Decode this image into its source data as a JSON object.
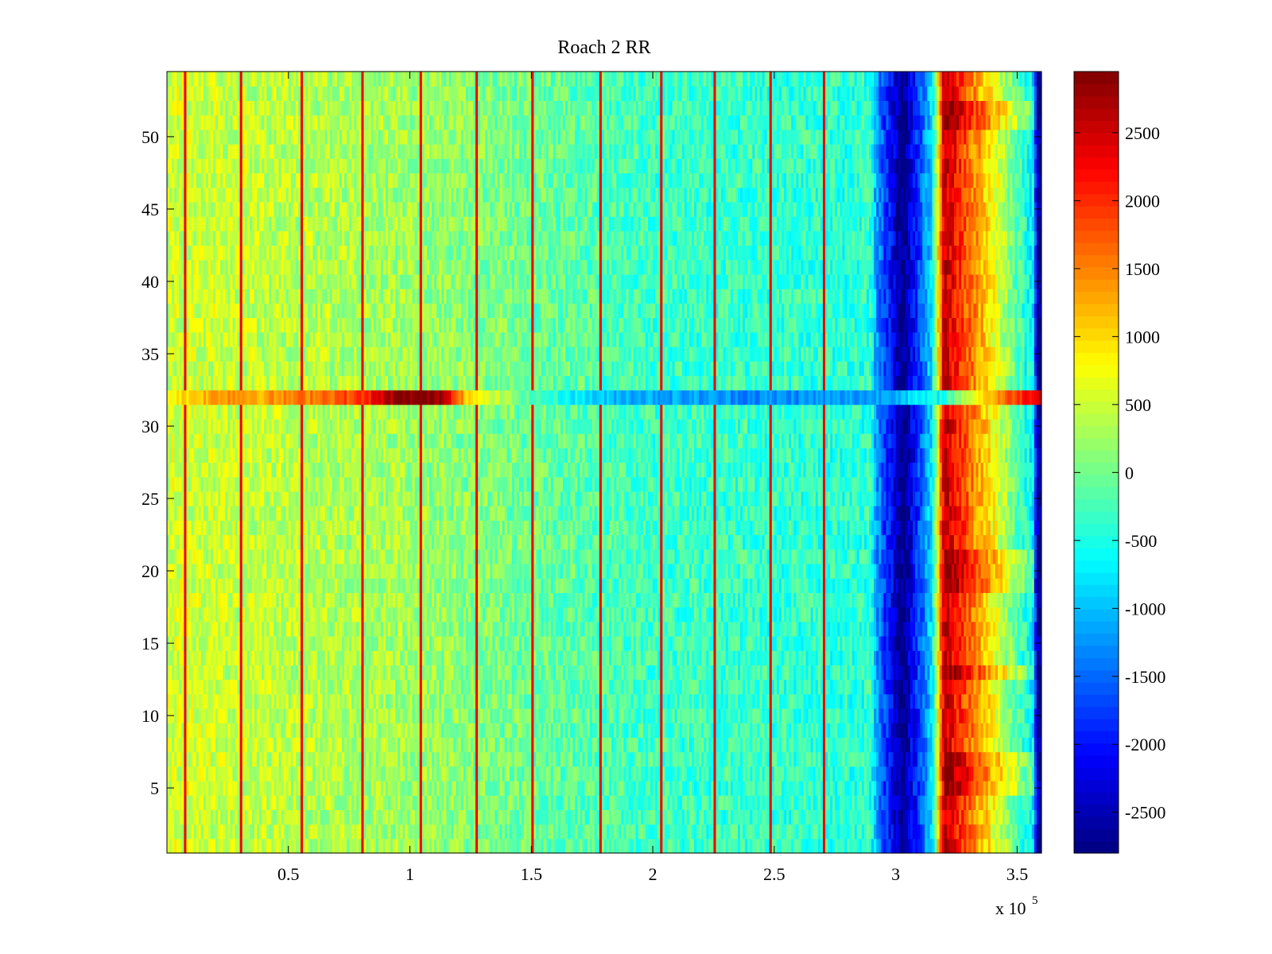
{
  "chart_data": {
    "type": "heatmap",
    "title": "Roach 2 RR",
    "xlabel": "",
    "ylabel": "",
    "x_exponent_label": {
      "base": "x 10",
      "exponent": "5"
    },
    "xlim": [
      0,
      360000
    ],
    "ylim": [
      0.5,
      54.5
    ],
    "rows": 54,
    "columns": 360,
    "x_ticks": [
      {
        "value": 50000,
        "label": "0.5"
      },
      {
        "value": 100000,
        "label": "1"
      },
      {
        "value": 150000,
        "label": "1.5"
      },
      {
        "value": 200000,
        "label": "2"
      },
      {
        "value": 250000,
        "label": "2.5"
      },
      {
        "value": 300000,
        "label": "3"
      },
      {
        "value": 350000,
        "label": "3.5"
      }
    ],
    "y_ticks": [
      {
        "value": 5,
        "label": "5"
      },
      {
        "value": 10,
        "label": "10"
      },
      {
        "value": 15,
        "label": "15"
      },
      {
        "value": 20,
        "label": "20"
      },
      {
        "value": 25,
        "label": "25"
      },
      {
        "value": 30,
        "label": "30"
      },
      {
        "value": 35,
        "label": "35"
      },
      {
        "value": 40,
        "label": "40"
      },
      {
        "value": 45,
        "label": "45"
      },
      {
        "value": 50,
        "label": "50"
      }
    ],
    "colorbar": {
      "colormap": "jet",
      "clim": [
        -2800,
        2950
      ],
      "ticks": [
        {
          "value": 2500,
          "label": "2500"
        },
        {
          "value": 2000,
          "label": "2000"
        },
        {
          "value": 1500,
          "label": "1500"
        },
        {
          "value": 1000,
          "label": "1000"
        },
        {
          "value": 500,
          "label": "500"
        },
        {
          "value": 0,
          "label": "0"
        },
        {
          "value": -500,
          "label": "-500"
        },
        {
          "value": -1000,
          "label": "-1000"
        },
        {
          "value": -1500,
          "label": "-1500"
        },
        {
          "value": -2000,
          "label": "-2000"
        },
        {
          "value": -2500,
          "label": "-2500"
        }
      ]
    },
    "baseline_trend": [
      {
        "x": 0,
        "value": 550
      },
      {
        "x": 100000,
        "value": 250
      },
      {
        "x": 200000,
        "value": -300
      },
      {
        "x": 290000,
        "value": -400
      },
      {
        "x": 292000,
        "value": -1200
      },
      {
        "x": 303000,
        "value": -2800
      },
      {
        "x": 315000,
        "value": -800
      },
      {
        "x": 320000,
        "value": 2600
      },
      {
        "x": 357000,
        "value": -800
      },
      {
        "x": 358000,
        "value": -2600
      },
      {
        "x": 360000,
        "value": -2600
      }
    ],
    "noise_amplitude": 400,
    "vertical_spikes": {
      "x": [
        7500,
        30500,
        55500,
        80500,
        104000,
        127000,
        150500,
        178000,
        203000,
        225000,
        248000,
        270000
      ],
      "value": 2300
    },
    "hot_row": {
      "row": 32,
      "profile": [
        {
          "x": 0,
          "value": 800
        },
        {
          "x": 25000,
          "value": 1500
        },
        {
          "x": 40000,
          "value": 1300
        },
        {
          "x": 80000,
          "value": 1900
        },
        {
          "x": 95000,
          "value": 2900
        },
        {
          "x": 113000,
          "value": 2900
        },
        {
          "x": 125000,
          "value": 900
        },
        {
          "x": 150000,
          "value": -200
        },
        {
          "x": 180000,
          "value": -1000
        },
        {
          "x": 240000,
          "value": -1300
        },
        {
          "x": 290000,
          "value": -1200
        },
        {
          "x": 318000,
          "value": -600
        },
        {
          "x": 333000,
          "value": 800
        },
        {
          "x": 360000,
          "value": 2600
        }
      ]
    },
    "highlighted_rows_in_red_block": [
      5,
      6,
      7,
      13,
      19,
      20,
      21,
      51,
      52
    ]
  }
}
